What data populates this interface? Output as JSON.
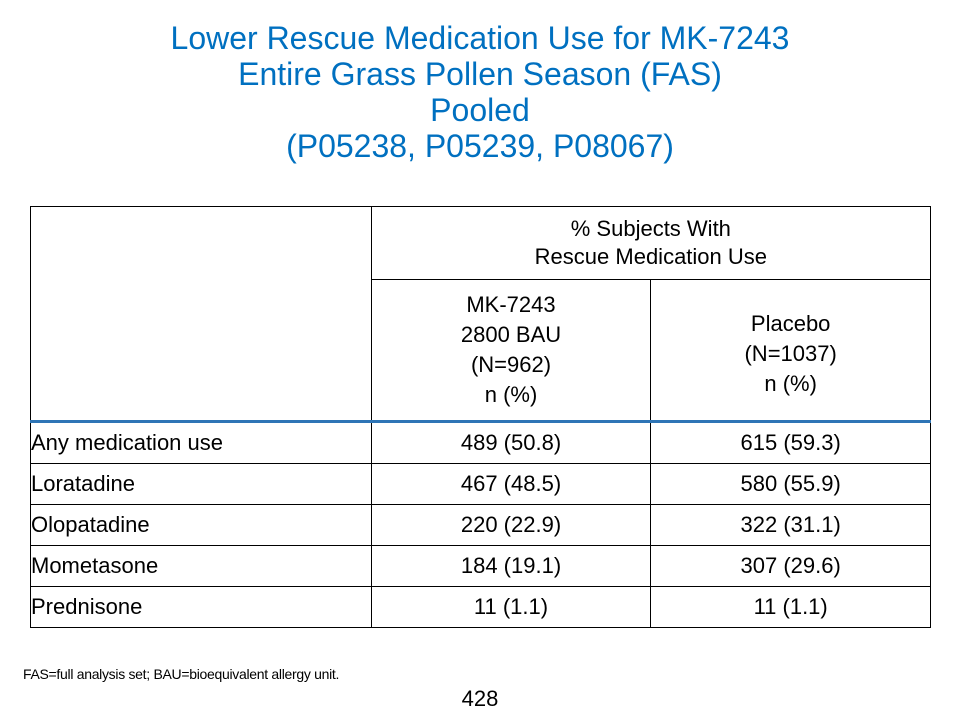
{
  "title": {
    "line1": "Lower Rescue Medication Use for MK-7243",
    "line2": "Entire Grass Pollen Season (FAS)",
    "line3": "Pooled",
    "line4": "(P05238, P05239, P08067)"
  },
  "table": {
    "group_header": {
      "line1": "% Subjects With",
      "line2": "Rescue Medication Use"
    },
    "columns": [
      {
        "line1": "MK-7243",
        "line2": "2800 BAU",
        "line3": "(N=962)",
        "line4": "n (%)"
      },
      {
        "line1": "Placebo",
        "line2": "(N=1037)",
        "line3": "n (%)"
      }
    ],
    "rows": [
      {
        "label": "Any medication use",
        "mk": "489 (50.8)",
        "placebo": "615 (59.3)"
      },
      {
        "label": "Loratadine",
        "mk": "467 (48.5)",
        "placebo": "580 (55.9)"
      },
      {
        "label": "Olopatadine",
        "mk": "220 (22.9)",
        "placebo": "322 (31.1)"
      },
      {
        "label": "Mometasone",
        "mk": "184 (19.1)",
        "placebo": "307 (29.6)"
      },
      {
        "label": "Prednisone",
        "mk": "11 (1.1)",
        "placebo": "11 (1.1)"
      }
    ]
  },
  "footnote": "FAS=full analysis set; BAU=bioequivalent allergy unit.",
  "page_number": "428",
  "colors": {
    "title": "#0070C0",
    "header_rule": "#2E75B6"
  }
}
